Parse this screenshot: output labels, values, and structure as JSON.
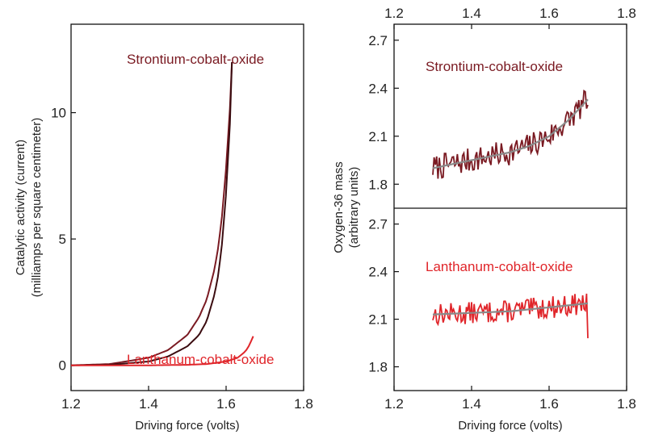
{
  "colors": {
    "strontium": "#7a1a22",
    "strontium_dark": "#3b0c10",
    "lanthanum": "#e0252a",
    "fit": "#8a8a8a",
    "axis": "#111111"
  },
  "chart_data": [
    {
      "type": "line",
      "xlabel": "Driving force (volts)",
      "ylabel_line1": "Catalytic activity (current)",
      "ylabel_line2": "(milliamps per square centimeter)",
      "xlim": [
        1.2,
        1.8
      ],
      "ylim": [
        -1.0,
        13.5
      ],
      "x_ticks": [
        "1.2",
        "1.4",
        "1.6",
        "1.8"
      ],
      "y_ticks": [
        "0",
        "5",
        "10"
      ],
      "series": [
        {
          "name": "Strontium-cobalt-oxide",
          "color_key": "strontium",
          "x": [
            1.2,
            1.3,
            1.4,
            1.45,
            1.5,
            1.53,
            1.55,
            1.57,
            1.58,
            1.59,
            1.6,
            1.61,
            1.615
          ],
          "y": [
            0.0,
            0.05,
            0.3,
            0.6,
            1.2,
            1.9,
            2.6,
            3.8,
            4.7,
            6.0,
            7.8,
            10.2,
            12.0
          ]
        },
        {
          "name": "Strontium-cobalt-oxide",
          "color_key": "strontium_dark",
          "x": [
            1.2,
            1.3,
            1.4,
            1.45,
            1.5,
            1.53,
            1.55,
            1.57,
            1.58,
            1.59,
            1.6,
            1.61,
            1.615
          ],
          "y": [
            0.0,
            0.02,
            0.15,
            0.35,
            0.75,
            1.2,
            1.75,
            2.8,
            3.6,
            4.9,
            6.8,
            9.6,
            12.0
          ]
        },
        {
          "name": "Lanthanum-cobalt-oxide",
          "color_key": "lanthanum",
          "x": [
            1.2,
            1.4,
            1.5,
            1.55,
            1.6,
            1.63,
            1.65,
            1.66,
            1.67
          ],
          "y": [
            0.0,
            0.0,
            0.02,
            0.05,
            0.15,
            0.3,
            0.55,
            0.8,
            1.15
          ]
        }
      ],
      "annotations": [
        {
          "text": "Strontium-cobalt-oxide",
          "color_key": "strontium"
        },
        {
          "text": "Lanthanum-cobalt-oxide",
          "color_key": "lanthanum"
        }
      ]
    },
    {
      "type": "line",
      "xlabel": "Driving force (volts)",
      "ylabel_line1": "Oxygen-36 mass",
      "ylabel_line2": "(arbitrary units)",
      "xlim": [
        1.2,
        1.8
      ],
      "x_ticks": [
        "1.2",
        "1.4",
        "1.6",
        "1.8"
      ],
      "panels": [
        {
          "label": "Strontium-cobalt-oxide",
          "color_key": "strontium",
          "ylim": [
            1.65,
            2.8
          ],
          "y_ticks": [
            "1.8",
            "2.1",
            "2.4",
            "2.7"
          ],
          "fit": {
            "x": [
              1.3,
              1.4,
              1.5,
              1.55,
              1.6,
              1.65,
              1.7
            ],
            "y": [
              1.9,
              1.95,
              2.0,
              2.04,
              2.1,
              2.2,
              2.33
            ]
          },
          "noise_amplitude": 0.08,
          "noise_seed": 7,
          "n_points": 120
        },
        {
          "label": "Lanthanum-cobalt-oxide",
          "color_key": "lanthanum",
          "ylim": [
            1.65,
            2.8
          ],
          "y_ticks": [
            "1.8",
            "2.1",
            "2.4",
            "2.7"
          ],
          "fit": {
            "x": [
              1.3,
              1.5,
              1.7
            ],
            "y": [
              2.13,
              2.15,
              2.2
            ]
          },
          "noise_amplitude": 0.07,
          "noise_seed": 13,
          "n_points": 120,
          "end_drop": 1.98
        }
      ]
    }
  ]
}
